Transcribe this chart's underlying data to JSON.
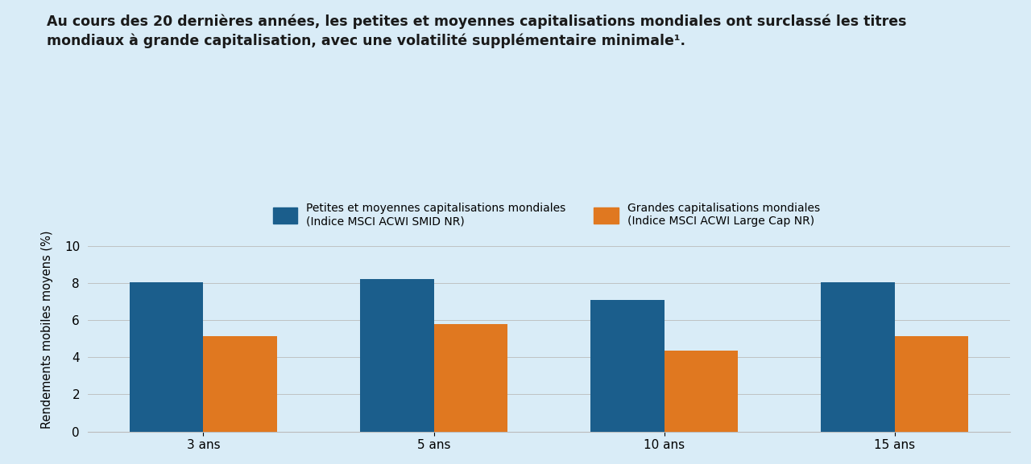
{
  "title_line1": "Au cours des 20 dernières années, les petites et moyennes capitalisations mondiales ont surclassé les titres",
  "title_line2": "mondiaux à grande capitalisation, avec une volatilité supplémentaire minimale¹.",
  "categories": [
    "3 ans",
    "5 ans",
    "10 ans",
    "15 ans"
  ],
  "smid_values": [
    8.05,
    8.2,
    7.1,
    8.05
  ],
  "large_values": [
    5.15,
    5.8,
    4.35,
    5.15
  ],
  "smid_color": "#1b5e8c",
  "large_color": "#e07820",
  "ylabel": "Rendements mobiles moyens (%)",
  "ylim": [
    0,
    11
  ],
  "yticks": [
    0,
    2,
    4,
    6,
    8,
    10
  ],
  "background_color": "#d9ecf7",
  "legend_smid_line1": "Petites et moyennes capitalisations mondiales",
  "legend_smid_line2": "(Indice MSCI ACWI SMID NR)",
  "legend_large_line1": "Grandes capitalisations mondiales",
  "legend_large_line2": "(Indice MSCI ACWI Large Cap NR)",
  "bar_width": 0.32,
  "title_fontsize": 12.5,
  "axis_fontsize": 10.5,
  "tick_fontsize": 11,
  "legend_fontsize": 10
}
